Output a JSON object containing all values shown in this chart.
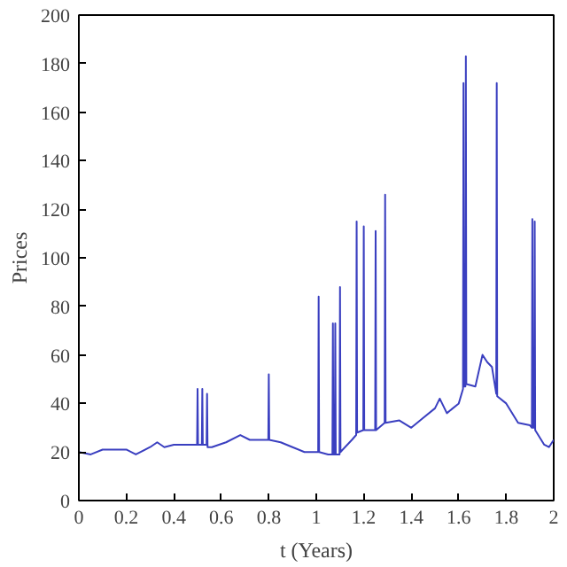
{
  "chart_data": {
    "type": "line",
    "xlabel": "t (Years)",
    "ylabel": "Prices",
    "xlim": [
      0,
      2
    ],
    "ylim": [
      0,
      200
    ],
    "xticks": [
      0,
      0.2,
      0.4,
      0.6,
      0.8,
      1,
      1.2,
      1.4,
      1.6,
      1.8,
      2
    ],
    "yticks": [
      0,
      20,
      40,
      60,
      80,
      100,
      120,
      140,
      160,
      180,
      200
    ],
    "grid": false,
    "series": [
      {
        "color": "#3a3fc0",
        "x": [
          0,
          0.05,
          0.1,
          0.2,
          0.24,
          0.3,
          0.33,
          0.36,
          0.4,
          0.498,
          0.5,
          0.502,
          0.518,
          0.52,
          0.522,
          0.538,
          0.54,
          0.542,
          0.56,
          0.62,
          0.68,
          0.72,
          0.798,
          0.8,
          0.802,
          0.85,
          0.9,
          0.95,
          1.008,
          1.01,
          1.012,
          1.05,
          1.068,
          1.07,
          1.072,
          1.078,
          1.08,
          1.082,
          1.098,
          1.1,
          1.102,
          1.15,
          1.168,
          1.17,
          1.172,
          1.198,
          1.2,
          1.202,
          1.248,
          1.25,
          1.252,
          1.288,
          1.29,
          1.292,
          1.35,
          1.4,
          1.45,
          1.5,
          1.52,
          1.55,
          1.6,
          1.618,
          1.62,
          1.622,
          1.628,
          1.63,
          1.632,
          1.67,
          1.7,
          1.72,
          1.74,
          1.758,
          1.76,
          1.762,
          1.8,
          1.85,
          1.9,
          1.908,
          1.91,
          1.912,
          1.918,
          1.92,
          1.922,
          1.96,
          1.98,
          2.0
        ],
        "values": [
          20,
          19,
          21,
          21,
          19,
          22,
          24,
          22,
          23,
          23,
          46,
          23,
          23,
          46,
          23,
          23,
          44,
          22,
          22,
          24,
          27,
          25,
          25,
          52,
          25,
          24,
          22,
          20,
          20,
          84,
          20,
          19,
          19,
          73,
          19,
          19,
          73,
          19,
          19,
          88,
          20,
          25,
          27,
          115,
          28,
          29,
          113,
          29,
          29,
          111,
          29,
          32,
          126,
          32,
          33,
          30,
          34,
          38,
          42,
          36,
          40,
          46,
          172,
          47,
          47,
          183,
          48,
          47,
          60,
          57,
          55,
          44,
          172,
          43,
          40,
          32,
          31,
          30,
          116,
          30,
          30,
          115,
          29,
          23,
          22,
          25
        ]
      }
    ]
  }
}
